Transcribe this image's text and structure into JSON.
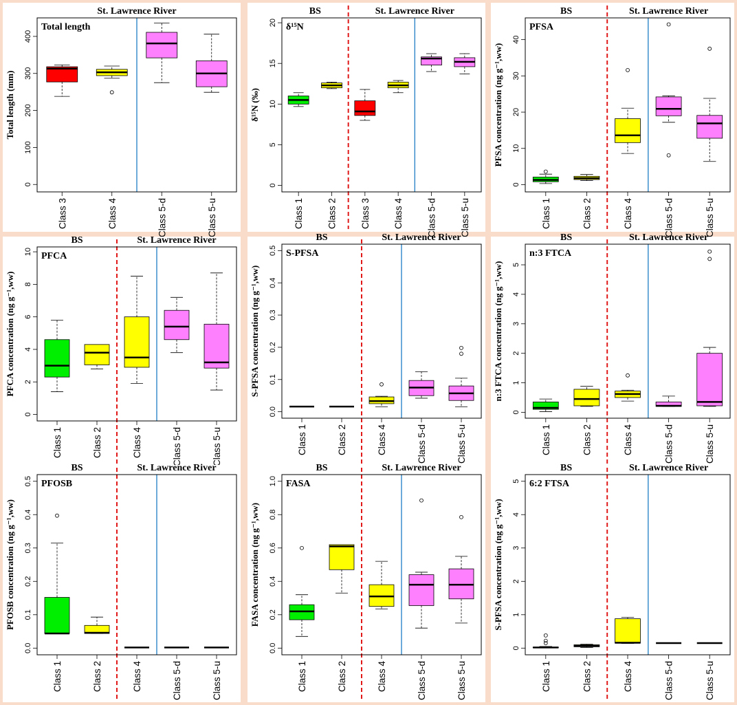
{
  "chart_data": [
    {
      "type": "box",
      "id": "total-length",
      "title": "Total length",
      "ylabel": "Total length (mm)",
      "ylim": [
        -20,
        450
      ],
      "yticks": [
        0,
        100,
        200,
        300,
        400
      ],
      "regions": {
        "left": "",
        "right": "St. Lawrence River"
      },
      "red_divider_after": null,
      "blue_divider_after": 2,
      "categories": [
        "Class 3",
        "Class 4",
        "Class 5-d",
        "Class 5-u"
      ],
      "boxes": [
        {
          "color": "#ff0000",
          "min": 238,
          "q1": 277,
          "median": 313,
          "q3": 318,
          "max": 323,
          "outliers": []
        },
        {
          "color": "#ffff00",
          "min": 287,
          "q1": 294,
          "median": 303,
          "q3": 311,
          "max": 320,
          "outliers": [
            249
          ]
        },
        {
          "color": "#ff80ff",
          "min": 275,
          "q1": 342,
          "median": 381,
          "q3": 411,
          "max": 436,
          "outliers": []
        },
        {
          "color": "#ff80ff",
          "min": 249,
          "q1": 264,
          "median": 300,
          "q3": 334,
          "max": 406,
          "outliers": []
        }
      ]
    },
    {
      "type": "box",
      "id": "d15n",
      "title": "δ¹⁵N",
      "ylabel": "δ¹⁵N (‰)",
      "ylim": [
        -0.8,
        20.6
      ],
      "yticks": [
        0,
        5,
        10,
        15,
        20
      ],
      "regions": {
        "left": "BS",
        "right": "St. Lawrence River"
      },
      "red_divider_after": 2,
      "blue_divider_after": 4,
      "categories": [
        "Class 1",
        "Class 2",
        "Class 3",
        "Class 4",
        "Class 5-d",
        "Class 5-u"
      ],
      "boxes": [
        {
          "color": "#00ee00",
          "min": 9.7,
          "q1": 10.0,
          "median": 10.5,
          "q3": 11.0,
          "max": 11.4,
          "outliers": []
        },
        {
          "color": "#ffff00",
          "min": 11.9,
          "q1": 12.0,
          "median": 12.3,
          "q3": 12.6,
          "max": 12.7,
          "outliers": []
        },
        {
          "color": "#ff0000",
          "min": 8.0,
          "q1": 8.6,
          "median": 9.1,
          "q3": 10.4,
          "max": 11.8,
          "outliers": []
        },
        {
          "color": "#ffff00",
          "min": 11.4,
          "q1": 12.0,
          "median": 12.3,
          "q3": 12.7,
          "max": 12.9,
          "outliers": []
        },
        {
          "color": "#ff80ff",
          "min": 14.0,
          "q1": 14.8,
          "median": 15.6,
          "q3": 15.8,
          "max": 16.2,
          "outliers": []
        },
        {
          "color": "#ff80ff",
          "min": 13.7,
          "q1": 14.6,
          "median": 15.2,
          "q3": 15.7,
          "max": 16.2,
          "outliers": []
        }
      ]
    },
    {
      "type": "box",
      "id": "pfsa",
      "title": "PFSA",
      "ylabel": "PFSA concentration (ng g⁻¹,ww)",
      "ylim": [
        -2,
        46
      ],
      "yticks": [
        0,
        10,
        20,
        30,
        40
      ],
      "regions": {
        "left": "BS",
        "right": "St. Lawrence River"
      },
      "red_divider_after": 2,
      "blue_divider_after": 3,
      "categories": [
        "Class 1",
        "Class 2",
        "Class 4",
        "Class 5-d",
        "Class 5-u"
      ],
      "boxes": [
        {
          "color": "#00ee00",
          "min": 0.3,
          "q1": 0.8,
          "median": 1.3,
          "q3": 2.1,
          "max": 2.9,
          "outliers": [
            3.6
          ]
        },
        {
          "color": "#ffff00",
          "min": 1.1,
          "q1": 1.4,
          "median": 1.8,
          "q3": 2.3,
          "max": 2.8,
          "outliers": []
        },
        {
          "color": "#ffff00",
          "min": 8.6,
          "q1": 11.6,
          "median": 13.6,
          "q3": 18.2,
          "max": 21.1,
          "outliers": [
            31.6
          ]
        },
        {
          "color": "#ff80ff",
          "min": 17.2,
          "q1": 19.0,
          "median": 20.9,
          "q3": 24.2,
          "max": 24.5,
          "outliers": [
            8.1,
            44.2
          ]
        },
        {
          "color": "#ff80ff",
          "min": 6.4,
          "q1": 12.8,
          "median": 16.9,
          "q3": 19.1,
          "max": 23.8,
          "outliers": [
            37.5
          ]
        }
      ]
    },
    {
      "type": "box",
      "id": "pfca",
      "title": "PFCA",
      "ylabel": "PFCA concentration (ng g⁻¹,ww)",
      "ylim": [
        -0.4,
        10.3
      ],
      "yticks": [
        0,
        2,
        4,
        6,
        8,
        10
      ],
      "regions": {
        "left": "BS",
        "right": "St. Lawrence River"
      },
      "red_divider_after": 2,
      "blue_divider_after": 3,
      "categories": [
        "Class 1",
        "Class 2",
        "Class 4",
        "Class 5-d",
        "Class 5-u"
      ],
      "boxes": [
        {
          "color": "#00ee00",
          "min": 1.4,
          "q1": 2.3,
          "median": 3.0,
          "q3": 4.6,
          "max": 5.8,
          "outliers": []
        },
        {
          "color": "#ffff00",
          "min": 2.8,
          "q1": 3.05,
          "median": 3.8,
          "q3": 4.3,
          "max": 4.3,
          "outliers": []
        },
        {
          "color": "#ffff00",
          "min": 1.9,
          "q1": 2.9,
          "median": 3.5,
          "q3": 6.0,
          "max": 8.5,
          "outliers": []
        },
        {
          "color": "#ff80ff",
          "min": 3.8,
          "q1": 4.6,
          "median": 5.4,
          "q3": 6.4,
          "max": 7.2,
          "outliers": []
        },
        {
          "color": "#ff80ff",
          "min": 1.5,
          "q1": 2.85,
          "median": 3.2,
          "q3": 5.55,
          "max": 8.7,
          "outliers": []
        }
      ]
    },
    {
      "type": "box",
      "id": "s-pfsa",
      "title": "S-PFSA",
      "ylabel": "S-PFSA concentration (ng g⁻¹,ww)",
      "ylim": [
        -0.02,
        0.52
      ],
      "yticks": [
        0.0,
        0.1,
        0.2,
        0.3,
        0.4,
        0.5
      ],
      "regions": {
        "left": "BS",
        "right": "St. Lawrence River"
      },
      "red_divider_after": 2,
      "blue_divider_after": 3,
      "categories": [
        "Class 1",
        "Class 2",
        "Class 4",
        "Class 5-d",
        "Class 5-u"
      ],
      "boxes": [
        {
          "color": "#000000",
          "min": 0.016,
          "q1": 0.016,
          "median": 0.016,
          "q3": 0.016,
          "max": 0.016,
          "outliers": []
        },
        {
          "color": "#000000",
          "min": 0.016,
          "q1": 0.016,
          "median": 0.016,
          "q3": 0.016,
          "max": 0.016,
          "outliers": []
        },
        {
          "color": "#ffff00",
          "min": 0.015,
          "q1": 0.025,
          "median": 0.033,
          "q3": 0.046,
          "max": 0.048,
          "outliers": [
            0.085
          ]
        },
        {
          "color": "#ff80ff",
          "min": 0.042,
          "q1": 0.05,
          "median": 0.075,
          "q3": 0.097,
          "max": 0.124,
          "outliers": []
        },
        {
          "color": "#ff80ff",
          "min": 0.015,
          "q1": 0.035,
          "median": 0.057,
          "q3": 0.08,
          "max": 0.104,
          "outliers": [
            0.18,
            0.198
          ]
        }
      ]
    },
    {
      "type": "box",
      "id": "n3-ftca",
      "title": "n:3 FTCA",
      "ylabel": "n:3 FTCA concentration (ng g⁻¹,ww)",
      "ylim": [
        -0.2,
        5.7
      ],
      "yticks": [
        0,
        1,
        2,
        3,
        4,
        5
      ],
      "regions": {
        "left": "BS",
        "right": "St. Lawrence River"
      },
      "red_divider_after": 2,
      "blue_divider_after": 3,
      "categories": [
        "Class 1",
        "Class 2",
        "Class 4",
        "Class 5-d",
        "Class 5-u"
      ],
      "boxes": [
        {
          "color": "#00ee00",
          "min": 0.02,
          "q1": 0.1,
          "median": 0.15,
          "q3": 0.35,
          "max": 0.45,
          "outliers": []
        },
        {
          "color": "#ffff00",
          "min": 0.2,
          "q1": 0.22,
          "median": 0.45,
          "q3": 0.78,
          "max": 0.88,
          "outliers": []
        },
        {
          "color": "#ffff00",
          "min": 0.38,
          "q1": 0.5,
          "median": 0.62,
          "q3": 0.72,
          "max": 0.75,
          "outliers": [
            1.25
          ]
        },
        {
          "color": "#ff80ff",
          "min": 0.2,
          "q1": 0.2,
          "median": 0.22,
          "q3": 0.35,
          "max": 0.55,
          "outliers": []
        },
        {
          "color": "#ff80ff",
          "min": 0.2,
          "q1": 0.22,
          "median": 0.35,
          "q3": 2.0,
          "max": 2.2,
          "outliers": [
            5.2,
            5.45
          ]
        }
      ]
    },
    {
      "type": "box",
      "id": "pfosb",
      "title": "PFOSB",
      "ylabel": "PFOSB concentration (ng g⁻¹,ww)",
      "ylim": [
        -0.02,
        0.52
      ],
      "yticks": [
        0.0,
        0.1,
        0.2,
        0.3,
        0.4,
        0.5
      ],
      "regions": {
        "left": "BS",
        "right": "St. Lawrence River"
      },
      "red_divider_after": 2,
      "blue_divider_after": 3,
      "categories": [
        "Class 1",
        "Class 2",
        "Class 4",
        "Class 5-d",
        "Class 5-u"
      ],
      "boxes": [
        {
          "color": "#00ee00",
          "min": 0.044,
          "q1": 0.044,
          "median": 0.044,
          "q3": 0.152,
          "max": 0.315,
          "outliers": [
            0.397
          ]
        },
        {
          "color": "#ffff00",
          "min": 0.044,
          "q1": 0.044,
          "median": 0.046,
          "q3": 0.068,
          "max": 0.093,
          "outliers": []
        },
        {
          "color": "#000000",
          "min": 0.002,
          "q1": 0.002,
          "median": 0.002,
          "q3": 0.002,
          "max": 0.002,
          "outliers": []
        },
        {
          "color": "#000000",
          "min": 0.002,
          "q1": 0.002,
          "median": 0.002,
          "q3": 0.002,
          "max": 0.002,
          "outliers": []
        },
        {
          "color": "#000000",
          "min": 0.002,
          "q1": 0.002,
          "median": 0.002,
          "q3": 0.002,
          "max": 0.002,
          "outliers": []
        }
      ]
    },
    {
      "type": "box",
      "id": "fasa",
      "title": "FASA",
      "ylabel": "FASA concentration (ng g⁻¹,ww)",
      "ylim": [
        -0.04,
        1.04
      ],
      "yticks": [
        0.0,
        0.2,
        0.4,
        0.6,
        0.8,
        1.0
      ],
      "regions": {
        "left": "BS",
        "right": "St. Lawrence River"
      },
      "red_divider_after": 2,
      "blue_divider_after": 3,
      "categories": [
        "Class 1",
        "Class 2",
        "Class 4",
        "Class 5-d",
        "Class 5-u"
      ],
      "boxes": [
        {
          "color": "#00ee00",
          "min": 0.07,
          "q1": 0.17,
          "median": 0.22,
          "q3": 0.26,
          "max": 0.32,
          "outliers": [
            0.6
          ]
        },
        {
          "color": "#ffff00",
          "min": 0.33,
          "q1": 0.47,
          "median": 0.61,
          "q3": 0.62,
          "max": 0.62,
          "outliers": []
        },
        {
          "color": "#ffff00",
          "min": 0.235,
          "q1": 0.25,
          "median": 0.31,
          "q3": 0.38,
          "max": 0.52,
          "outliers": []
        },
        {
          "color": "#ff80ff",
          "min": 0.12,
          "q1": 0.255,
          "median": 0.38,
          "q3": 0.44,
          "max": 0.455,
          "outliers": [
            0.885
          ]
        },
        {
          "color": "#ff80ff",
          "min": 0.15,
          "q1": 0.295,
          "median": 0.38,
          "q3": 0.475,
          "max": 0.55,
          "outliers": [
            0.785
          ]
        }
      ]
    },
    {
      "type": "box",
      "id": "fts-62",
      "title": "6:2 FTSA",
      "ylabel": "S-PFSA concentration (ng g⁻¹,ww)",
      "ylim": [
        -0.2,
        5.2
      ],
      "yticks": [
        0,
        1,
        2,
        3,
        4,
        5
      ],
      "regions": {
        "left": "BS",
        "right": "St. Lawrence River"
      },
      "red_divider_after": 2,
      "blue_divider_after": 3,
      "categories": [
        "Class 1",
        "Class 2",
        "Class 4",
        "Class 5-d",
        "Class 5-u"
      ],
      "boxes": [
        {
          "color": "#00ee00",
          "min": 0.01,
          "q1": 0.01,
          "median": 0.02,
          "q3": 0.03,
          "max": 0.05,
          "outliers": [
            0.15,
            0.22,
            0.38
          ]
        },
        {
          "color": "#ffff00",
          "min": 0.02,
          "q1": 0.04,
          "median": 0.07,
          "q3": 0.1,
          "max": 0.12,
          "outliers": []
        },
        {
          "color": "#ffff00",
          "min": 0.14,
          "q1": 0.15,
          "median": 0.16,
          "q3": 0.88,
          "max": 0.92,
          "outliers": []
        },
        {
          "color": "#000000",
          "min": 0.15,
          "q1": 0.15,
          "median": 0.15,
          "q3": 0.15,
          "max": 0.15,
          "outliers": []
        },
        {
          "color": "#000000",
          "min": 0.15,
          "q1": 0.15,
          "median": 0.15,
          "q3": 0.15,
          "max": 0.15,
          "outliers": []
        }
      ]
    }
  ]
}
